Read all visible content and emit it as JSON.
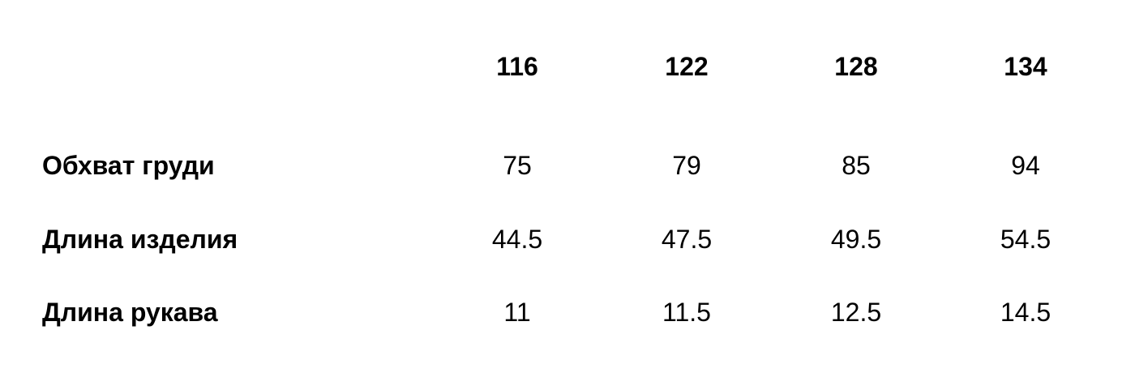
{
  "table": {
    "headers": [
      "116",
      "122",
      "128",
      "134"
    ],
    "rows": [
      {
        "label": "Обхват груди",
        "values": [
          "75",
          "79",
          "85",
          "94"
        ]
      },
      {
        "label": "Длина изделия",
        "values": [
          "44.5",
          "47.5",
          "49.5",
          "54.5"
        ]
      },
      {
        "label": "Длина рукава",
        "values": [
          "11",
          "11.5",
          "12.5",
          "14.5"
        ]
      }
    ]
  }
}
